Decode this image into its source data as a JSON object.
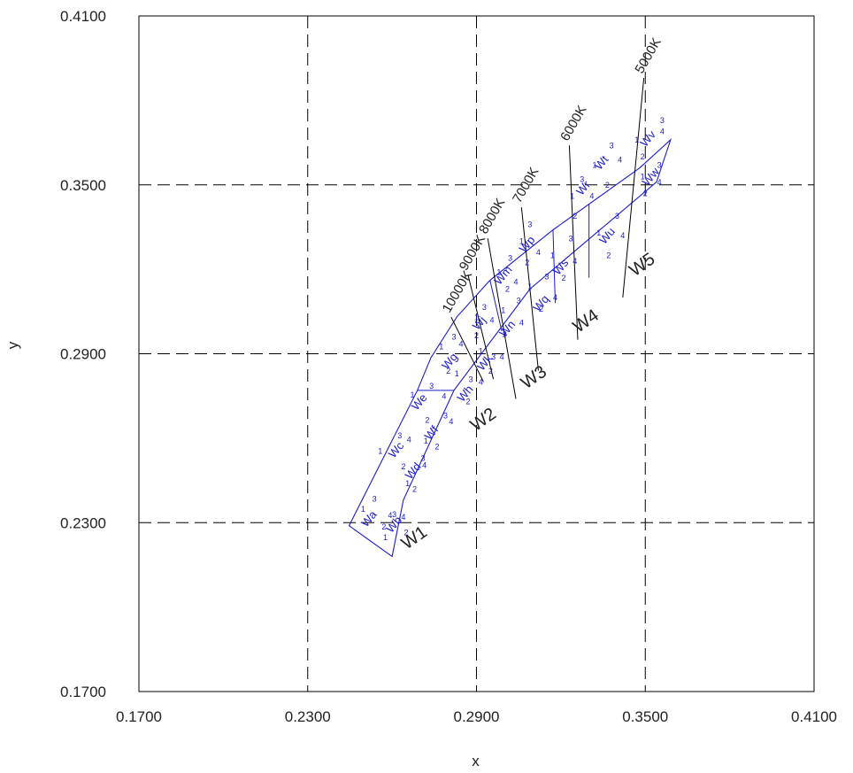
{
  "chart_data": {
    "type": "scatter",
    "title": "",
    "xlabel": "x",
    "ylabel": "y",
    "xlim": [
      0.17,
      0.41
    ],
    "ylim": [
      0.17,
      0.41
    ],
    "x_ticks": [
      "0.1700",
      "0.2300",
      "0.2900",
      "0.3500",
      "0.4100"
    ],
    "y_ticks": [
      "0.1700",
      "0.2300",
      "0.2900",
      "0.3500",
      "0.4100"
    ],
    "gridlines_x": [
      0.23,
      0.29,
      0.35
    ],
    "gridlines_y": [
      0.23,
      0.29,
      0.35
    ],
    "grid": "dashed",
    "colors": {
      "regions": "#1a1acc",
      "axes": "#000000",
      "grid": "#000000"
    },
    "outline": [
      [
        0.2447,
        0.2289
      ],
      [
        0.269,
        0.277
      ],
      [
        0.2738,
        0.2886
      ],
      [
        0.2831,
        0.3032
      ],
      [
        0.2948,
        0.3161
      ],
      [
        0.3172,
        0.334
      ],
      [
        0.348,
        0.356
      ],
      [
        0.359,
        0.366
      ],
      [
        0.354,
        0.351
      ],
      [
        0.309,
        0.313
      ],
      [
        0.282,
        0.277
      ],
      [
        0.264,
        0.238
      ],
      [
        0.26,
        0.218
      ]
    ],
    "boundaries": [
      [
        [
          0.269,
          0.277
        ],
        [
          0.282,
          0.277
        ]
      ],
      [
        [
          0.2948,
          0.3161
        ],
        [
          0.299,
          0.298
        ]
      ],
      [
        [
          0.3172,
          0.334
        ],
        [
          0.318,
          0.308
        ]
      ],
      [
        [
          0.33,
          0.343
        ],
        [
          0.33,
          0.317
        ]
      ]
    ],
    "cct_lines": [
      {
        "label": "10000K",
        "from": [
          0.281,
          0.303
        ],
        "to": [
          0.2925,
          0.28
        ]
      },
      {
        "label": "9000K",
        "from": [
          0.287,
          0.318
        ],
        "to": [
          0.296,
          0.281
        ]
      },
      {
        "label": "8000K",
        "from": [
          0.294,
          0.331
        ],
        "to": [
          0.304,
          0.274
        ]
      },
      {
        "label": "7000K",
        "from": [
          0.306,
          0.342
        ],
        "to": [
          0.312,
          0.284
        ]
      },
      {
        "label": "6000K",
        "from": [
          0.323,
          0.364
        ],
        "to": [
          0.326,
          0.295
        ]
      },
      {
        "label": "5000K",
        "from": [
          0.3495,
          0.388
        ],
        "to": [
          0.342,
          0.31
        ]
      }
    ],
    "bins": [
      {
        "label": "W1",
        "x": 0.269,
        "y": 0.223
      },
      {
        "label": "W2",
        "x": 0.2935,
        "y": 0.265
      },
      {
        "label": "W3",
        "x": 0.3115,
        "y": 0.28
      },
      {
        "label": "W4",
        "x": 0.33,
        "y": 0.3
      },
      {
        "label": "W5",
        "x": 0.35,
        "y": 0.32
      }
    ],
    "regions": [
      {
        "label": "Wa",
        "x": 0.2528,
        "y": 0.2305
      },
      {
        "label": "Wb",
        "x": 0.2617,
        "y": 0.2285
      },
      {
        "label": "Wc",
        "x": 0.2625,
        "y": 0.255
      },
      {
        "label": "Wd",
        "x": 0.2685,
        "y": 0.2475
      },
      {
        "label": "We",
        "x": 0.2707,
        "y": 0.272
      },
      {
        "label": "Wf",
        "x": 0.275,
        "y": 0.261
      },
      {
        "label": "Wg",
        "x": 0.2815,
        "y": 0.2865
      },
      {
        "label": "Wh",
        "x": 0.287,
        "y": 0.275
      },
      {
        "label": "Wj",
        "x": 0.292,
        "y": 0.3
      },
      {
        "label": "Wk",
        "x": 0.294,
        "y": 0.286
      },
      {
        "label": "Wm",
        "x": 0.3005,
        "y": 0.317
      },
      {
        "label": "Wn",
        "x": 0.302,
        "y": 0.298
      },
      {
        "label": "Wp",
        "x": 0.309,
        "y": 0.328
      },
      {
        "label": "Wq",
        "x": 0.314,
        "y": 0.307
      },
      {
        "label": "Wr",
        "x": 0.329,
        "y": 0.348
      },
      {
        "label": "Ws",
        "x": 0.321,
        "y": 0.32
      },
      {
        "label": "Wt",
        "x": 0.3355,
        "y": 0.357
      },
      {
        "label": "Wu",
        "x": 0.3375,
        "y": 0.331
      },
      {
        "label": "Wv",
        "x": 0.352,
        "y": 0.3655
      },
      {
        "label": "Ww",
        "x": 0.353,
        "y": 0.352
      }
    ],
    "sub_labels": [
      {
        "label": "1",
        "x": 0.2497,
        "y": 0.2338
      },
      {
        "label": "2",
        "x": 0.2571,
        "y": 0.2275
      },
      {
        "label": "3",
        "x": 0.2537,
        "y": 0.2374
      },
      {
        "label": "4",
        "x": 0.2593,
        "y": 0.2317
      },
      {
        "label": "1",
        "x": 0.2576,
        "y": 0.2238
      },
      {
        "label": "2",
        "x": 0.265,
        "y": 0.2255
      },
      {
        "label": "3",
        "x": 0.2608,
        "y": 0.232
      },
      {
        "label": "4",
        "x": 0.264,
        "y": 0.231
      },
      {
        "label": "1",
        "x": 0.2558,
        "y": 0.2545
      },
      {
        "label": "2",
        "x": 0.264,
        "y": 0.249
      },
      {
        "label": "3",
        "x": 0.2627,
        "y": 0.26
      },
      {
        "label": "4",
        "x": 0.266,
        "y": 0.2585
      },
      {
        "label": "1",
        "x": 0.2655,
        "y": 0.243
      },
      {
        "label": "2",
        "x": 0.268,
        "y": 0.241
      },
      {
        "label": "3",
        "x": 0.271,
        "y": 0.252
      },
      {
        "label": "4",
        "x": 0.2715,
        "y": 0.2495
      },
      {
        "label": "1",
        "x": 0.2672,
        "y": 0.2745
      },
      {
        "label": "2",
        "x": 0.2725,
        "y": 0.2655
      },
      {
        "label": "3",
        "x": 0.274,
        "y": 0.2775
      },
      {
        "label": "4",
        "x": 0.2785,
        "y": 0.274
      },
      {
        "label": "1",
        "x": 0.272,
        "y": 0.258
      },
      {
        "label": "2",
        "x": 0.276,
        "y": 0.256
      },
      {
        "label": "3",
        "x": 0.279,
        "y": 0.267
      },
      {
        "label": "4",
        "x": 0.281,
        "y": 0.265
      },
      {
        "label": "1",
        "x": 0.2775,
        "y": 0.2915
      },
      {
        "label": "2",
        "x": 0.28,
        "y": 0.283
      },
      {
        "label": "3",
        "x": 0.282,
        "y": 0.295
      },
      {
        "label": "4",
        "x": 0.2845,
        "y": 0.2925
      },
      {
        "label": "1",
        "x": 0.283,
        "y": 0.282
      },
      {
        "label": "2",
        "x": 0.287,
        "y": 0.272
      },
      {
        "label": "3",
        "x": 0.288,
        "y": 0.28
      },
      {
        "label": "4",
        "x": 0.2915,
        "y": 0.279
      },
      {
        "label": "1",
        "x": 0.29,
        "y": 0.302
      },
      {
        "label": "2",
        "x": 0.29,
        "y": 0.2955
      },
      {
        "label": "3",
        "x": 0.2928,
        "y": 0.3055
      },
      {
        "label": "4",
        "x": 0.2955,
        "y": 0.301
      },
      {
        "label": "1",
        "x": 0.2915,
        "y": 0.29
      },
      {
        "label": "2",
        "x": 0.295,
        "y": 0.283
      },
      {
        "label": "3",
        "x": 0.296,
        "y": 0.288
      },
      {
        "label": "4",
        "x": 0.299,
        "y": 0.288
      },
      {
        "label": "1",
        "x": 0.298,
        "y": 0.318
      },
      {
        "label": "2",
        "x": 0.301,
        "y": 0.312
      },
      {
        "label": "3",
        "x": 0.302,
        "y": 0.323
      },
      {
        "label": "4",
        "x": 0.304,
        "y": 0.3145
      },
      {
        "label": "1",
        "x": 0.2995,
        "y": 0.3045
      },
      {
        "label": "2",
        "x": 0.3,
        "y": 0.296
      },
      {
        "label": "3",
        "x": 0.305,
        "y": 0.308
      },
      {
        "label": "4",
        "x": 0.306,
        "y": 0.3
      },
      {
        "label": "1",
        "x": 0.306,
        "y": 0.329
      },
      {
        "label": "2",
        "x": 0.308,
        "y": 0.3215
      },
      {
        "label": "3",
        "x": 0.309,
        "y": 0.335
      },
      {
        "label": "4",
        "x": 0.312,
        "y": 0.325
      },
      {
        "label": "1",
        "x": 0.309,
        "y": 0.313
      },
      {
        "label": "2",
        "x": 0.313,
        "y": 0.305
      },
      {
        "label": "3",
        "x": 0.315,
        "y": 0.3165
      },
      {
        "label": "4",
        "x": 0.318,
        "y": 0.309
      },
      {
        "label": "1",
        "x": 0.324,
        "y": 0.345
      },
      {
        "label": "2",
        "x": 0.325,
        "y": 0.338
      },
      {
        "label": "3",
        "x": 0.3275,
        "y": 0.351
      },
      {
        "label": "4",
        "x": 0.331,
        "y": 0.345
      },
      {
        "label": "1",
        "x": 0.317,
        "y": 0.324
      },
      {
        "label": "2",
        "x": 0.321,
        "y": 0.316
      },
      {
        "label": "3",
        "x": 0.3235,
        "y": 0.33
      },
      {
        "label": "4",
        "x": 0.325,
        "y": 0.322
      },
      {
        "label": "1",
        "x": 0.332,
        "y": 0.356
      },
      {
        "label": "2",
        "x": 0.3365,
        "y": 0.349
      },
      {
        "label": "3",
        "x": 0.338,
        "y": 0.363
      },
      {
        "label": "4",
        "x": 0.341,
        "y": 0.358
      },
      {
        "label": "1",
        "x": 0.3335,
        "y": 0.332
      },
      {
        "label": "2",
        "x": 0.337,
        "y": 0.324
      },
      {
        "label": "3",
        "x": 0.34,
        "y": 0.338
      },
      {
        "label": "4",
        "x": 0.342,
        "y": 0.331
      },
      {
        "label": "1",
        "x": 0.347,
        "y": 0.365
      },
      {
        "label": "2",
        "x": 0.349,
        "y": 0.359
      },
      {
        "label": "3",
        "x": 0.356,
        "y": 0.372
      },
      {
        "label": "4",
        "x": 0.356,
        "y": 0.368
      },
      {
        "label": "1",
        "x": 0.349,
        "y": 0.352
      },
      {
        "label": "2",
        "x": 0.35,
        "y": 0.346
      },
      {
        "label": "3",
        "x": 0.355,
        "y": 0.356
      },
      {
        "label": "4",
        "x": 0.355,
        "y": 0.35
      }
    ]
  }
}
